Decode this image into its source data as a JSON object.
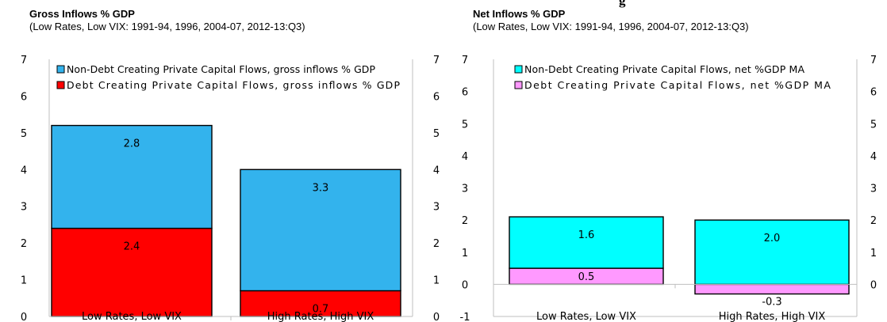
{
  "page": {
    "heading": "g"
  },
  "chart_data": [
    {
      "type": "bar",
      "stacked": true,
      "title": "Gross Inflows % GDP",
      "subtitle": "(Low Rates, Low VIX: 1991-94, 1996, 2004-07, 2012-13:Q3)",
      "categories": [
        "Low Rates, Low VIX",
        "High Rates, High VIX"
      ],
      "series": [
        {
          "name": "Debt Creating Private Capital Flows, gross inflows % GDP",
          "values": [
            2.4,
            0.7
          ],
          "color": "#ff0000"
        },
        {
          "name": "Non-Debt Creating Private Capital Flows, gross inflows % GDP",
          "values": [
            2.8,
            3.3
          ],
          "color": "#33b3ed"
        }
      ],
      "ylim": [
        0,
        7
      ],
      "yticks": [
        "0",
        "1",
        "2",
        "3",
        "4",
        "5",
        "6",
        "7"
      ],
      "data_labels": [
        [
          "2.4",
          "0.7"
        ],
        [
          "2.8",
          "3.3"
        ]
      ],
      "legend": "top-left",
      "grid": false
    },
    {
      "type": "bar",
      "stacked": true,
      "title": "Net Inflows % GDP",
      "subtitle": "(Low Rates, Low VIX: 1991-94, 1996, 2004-07, 2012-13:Q3)",
      "categories": [
        "Low Rates, Low VIX",
        "High Rates, High VIX"
      ],
      "series": [
        {
          "name": "Debt Creating Private Capital Flows, net %GDP MA",
          "values": [
            0.5,
            -0.3
          ],
          "color": "#ff99ff"
        },
        {
          "name": "Non-Debt Creating Private Capital Flows, net %GDP MA",
          "values": [
            1.6,
            2.0
          ],
          "color": "#00ffff"
        }
      ],
      "ylim": [
        -1,
        7
      ],
      "yticks": [
        "-1",
        "0",
        "1",
        "2",
        "3",
        "4",
        "5",
        "6",
        "7"
      ],
      "right_yticks": [
        "0",
        "1",
        "2",
        "3",
        "4",
        "5",
        "6",
        "7"
      ],
      "data_labels": [
        [
          "0.5",
          "-0.3"
        ],
        [
          "1.6",
          "2.0"
        ]
      ],
      "legend": "top-left",
      "grid": false
    }
  ]
}
